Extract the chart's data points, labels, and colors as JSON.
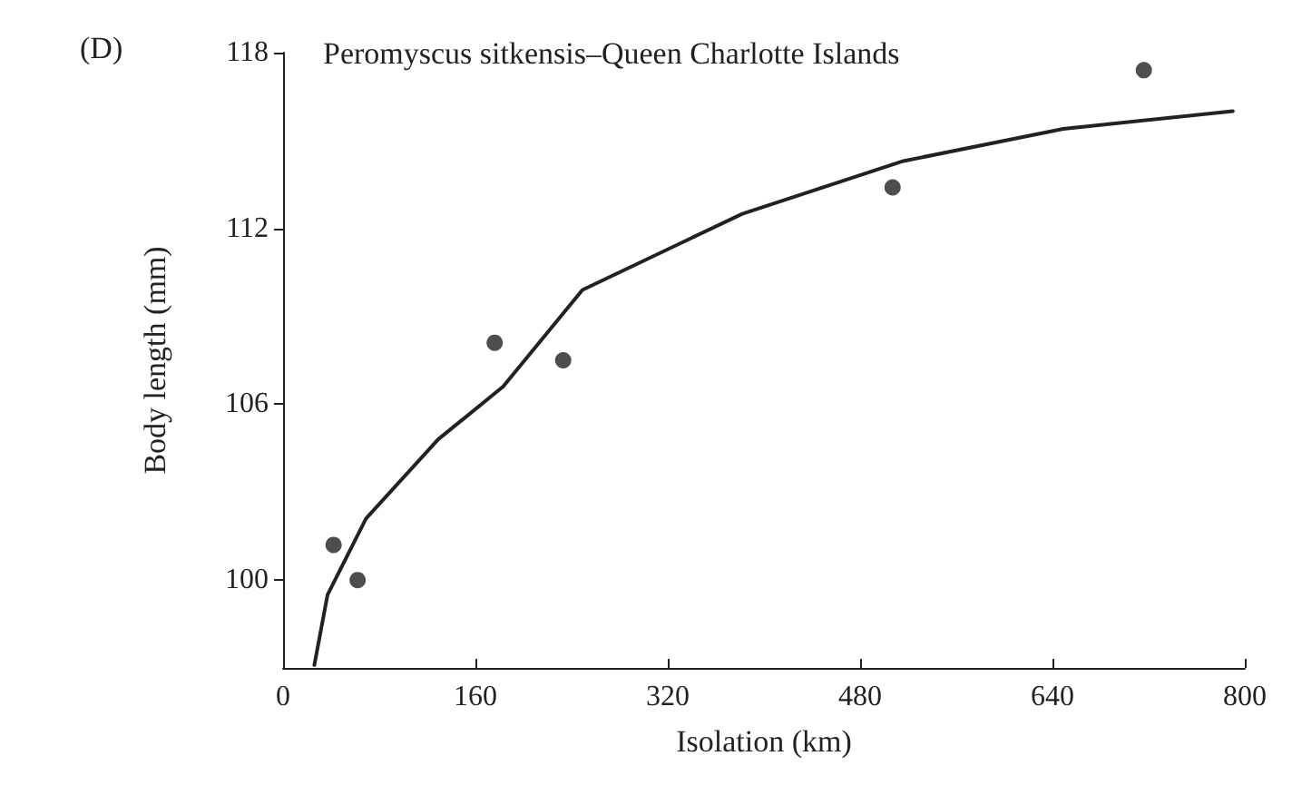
{
  "chart_data": {
    "type": "scatter",
    "title": "Peromyscus sitkensis–Queen Charlotte Islands",
    "xlabel": "Isolation (km)",
    "ylabel": "Body length (mm)",
    "annotations": [
      "(D)"
    ],
    "xlim": [
      0,
      800
    ],
    "xticks": [
      0,
      160,
      320,
      480,
      640,
      800
    ],
    "ylim": [
      97,
      118
    ],
    "yticks": [
      100,
      106,
      112,
      118
    ],
    "grid": false,
    "marker": "circle",
    "series": [
      {
        "color": "#222222",
        "x": [
          42,
          62,
          176,
          233,
          507,
          716
        ],
        "values": [
          101.2,
          100.0,
          108.1,
          107.5,
          113.4,
          117.4
        ]
      },
      {
        "type": "line",
        "color": "#222222",
        "line_style": "solid",
        "marker": "none",
        "x": [
          26,
          37,
          69,
          129,
          183,
          249,
          382,
          516,
          649,
          790
        ],
        "values": [
          97.1,
          99.5,
          102.1,
          104.8,
          106.6,
          109.9,
          112.5,
          114.3,
          115.4,
          116.0
        ]
      }
    ]
  }
}
